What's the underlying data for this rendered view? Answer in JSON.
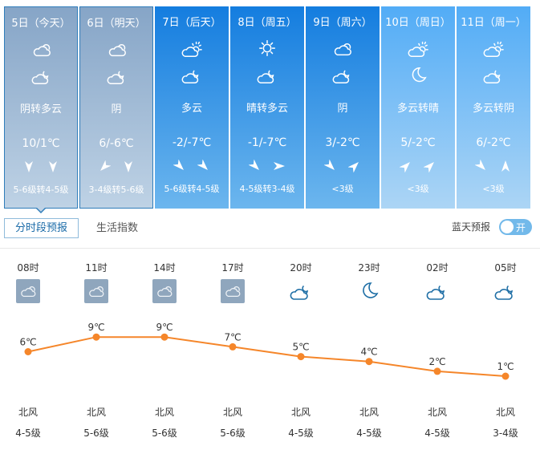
{
  "days": [
    {
      "date": "5日（今天）",
      "icon_day": "cloudy-icon",
      "icon_night": "moon-cloud-icon",
      "desc": "阴转多云",
      "temp": "10/1℃",
      "wind_dirs": [
        180,
        180
      ],
      "level": "5-6级转4-5级",
      "style": "past",
      "selected": true
    },
    {
      "date": "6日（明天）",
      "icon_day": "cloudy-icon",
      "icon_night": "moon-cloud-icon",
      "desc": "阴",
      "temp": "6/-6℃",
      "wind_dirs": [
        225,
        180
      ],
      "level": "3-4级转5-6级",
      "style": "past"
    },
    {
      "date": "7日（后天）",
      "icon_day": "sun-cloud-icon",
      "icon_night": "moon-cloud-icon",
      "desc": "多云",
      "temp": "-2/-7℃",
      "wind_dirs": [
        135,
        135
      ],
      "level": "5-6级转4-5级",
      "style": "near"
    },
    {
      "date": "8日（周五）",
      "icon_day": "sun-icon",
      "icon_night": "moon-cloud-icon",
      "desc": "晴转多云",
      "temp": "-1/-7℃",
      "wind_dirs": [
        135,
        90
      ],
      "level": "4-5级转3-4级",
      "style": "near"
    },
    {
      "date": "9日（周六）",
      "icon_day": "cloudy-icon",
      "icon_night": "moon-cloud-icon",
      "desc": "阴",
      "temp": "3/-2℃",
      "wind_dirs": [
        135,
        45
      ],
      "level": "<3级",
      "style": "near"
    },
    {
      "date": "10日（周日）",
      "icon_day": "sun-cloud-icon",
      "icon_night": "moon-icon",
      "desc": "多云转晴",
      "temp": "5/-2℃",
      "wind_dirs": [
        45,
        45
      ],
      "level": "<3级",
      "style": "far"
    },
    {
      "date": "11日（周一）",
      "icon_day": "sun-cloud-icon",
      "icon_night": "moon-cloud-icon",
      "desc": "多云转阴",
      "temp": "6/-2℃",
      "wind_dirs": [
        135,
        0
      ],
      "level": "<3级",
      "style": "far"
    }
  ],
  "tabs": {
    "hourly": "分时段预报",
    "life": "生活指数"
  },
  "blue_sky": {
    "label": "蓝天预报",
    "toggle": "开",
    "on": true
  },
  "colors": {
    "line": "#f5862a",
    "icon_night": "#1f6fa6"
  },
  "hourly": [
    {
      "time": "08时",
      "icon": "cloudy-icon",
      "temp": 6,
      "temp_label": "6℃",
      "wind": "北风",
      "level": "4-5级"
    },
    {
      "time": "11时",
      "icon": "cloudy-icon",
      "temp": 9,
      "temp_label": "9℃",
      "wind": "北风",
      "level": "5-6级"
    },
    {
      "time": "14时",
      "icon": "cloudy-icon",
      "temp": 9,
      "temp_label": "9℃",
      "wind": "北风",
      "level": "5-6级"
    },
    {
      "time": "17时",
      "icon": "cloudy-icon",
      "temp": 7,
      "temp_label": "7℃",
      "wind": "北风",
      "level": "5-6级"
    },
    {
      "time": "20时",
      "icon": "moon-cloud-icon",
      "temp": 5,
      "temp_label": "5℃",
      "wind": "北风",
      "level": "4-5级"
    },
    {
      "time": "23时",
      "icon": "moon-icon",
      "temp": 4,
      "temp_label": "4℃",
      "wind": "北风",
      "level": "4-5级"
    },
    {
      "time": "02时",
      "icon": "moon-cloud-icon",
      "temp": 2,
      "temp_label": "2℃",
      "wind": "北风",
      "level": "4-5级"
    },
    {
      "time": "05时",
      "icon": "moon-cloud-icon",
      "temp": 1,
      "temp_label": "1℃",
      "wind": "北风",
      "level": "3-4级"
    }
  ]
}
